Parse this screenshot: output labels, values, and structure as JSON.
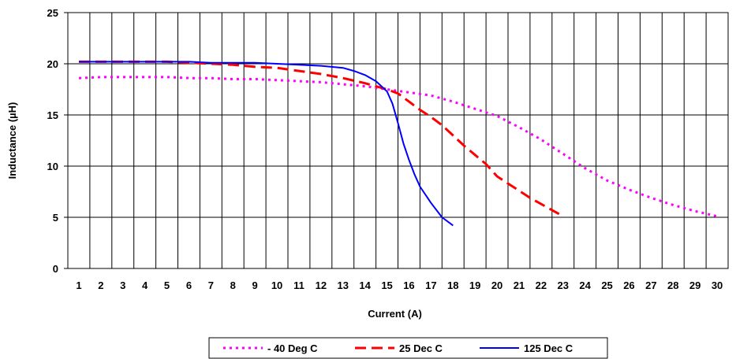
{
  "chart_data": {
    "type": "line",
    "xlabel": "Current (A)",
    "ylabel": "Inductance (µH)",
    "x_categories": [
      "1",
      "2",
      "3",
      "4",
      "5",
      "6",
      "7",
      "8",
      "9",
      "10",
      "11",
      "12",
      "13",
      "14",
      "15",
      "16",
      "17",
      "18",
      "19",
      "20",
      "21",
      "22",
      "23",
      "24",
      "25",
      "26",
      "27",
      "28",
      "29",
      "30"
    ],
    "xlim": [
      0.5,
      30.5
    ],
    "ylim": [
      0,
      25
    ],
    "yticks": [
      0,
      5,
      10,
      15,
      20,
      25
    ],
    "grid": true,
    "legend_position": "bottom",
    "series": [
      {
        "name": "- 40 Deg C",
        "color": "#ff00ff",
        "style": "dotted",
        "x": [
          1,
          2,
          3,
          4,
          5,
          6,
          7,
          8,
          9,
          10,
          11,
          12,
          13,
          14,
          15,
          16,
          17,
          18,
          19,
          20,
          21,
          22,
          23,
          24,
          25,
          26,
          27,
          28,
          29,
          30
        ],
        "y": [
          18.6,
          18.7,
          18.7,
          18.7,
          18.7,
          18.6,
          18.6,
          18.5,
          18.5,
          18.4,
          18.3,
          18.2,
          18.0,
          17.8,
          17.5,
          17.2,
          16.9,
          16.3,
          15.6,
          14.9,
          13.8,
          12.6,
          11.2,
          9.8,
          8.6,
          7.7,
          6.9,
          6.2,
          5.6,
          5.1
        ]
      },
      {
        "name": "25 Dec C",
        "color": "#ff0000",
        "style": "dashed",
        "x": [
          1,
          2,
          3,
          4,
          5,
          6,
          7,
          8,
          9,
          10,
          11,
          12,
          13,
          14,
          15,
          15.5,
          16,
          16.5,
          17,
          17.5,
          18,
          18.5,
          19,
          19.5,
          20,
          20.5,
          21,
          21.5,
          22,
          22.5,
          23
        ],
        "y": [
          20.2,
          20.2,
          20.2,
          20.2,
          20.2,
          20.1,
          20.0,
          19.9,
          19.7,
          19.6,
          19.3,
          19.0,
          18.6,
          18.1,
          17.5,
          17.1,
          16.3,
          15.5,
          14.8,
          14.0,
          13.0,
          12.0,
          11.1,
          10.2,
          9.0,
          8.3,
          7.6,
          6.9,
          6.3,
          5.7,
          5.1
        ]
      },
      {
        "name": "125 Dec C",
        "color": "#0000ff",
        "style": "solid",
        "x": [
          1,
          2,
          3,
          4,
          5,
          6,
          7,
          8,
          9,
          10,
          11,
          12,
          13,
          13.5,
          14,
          14.5,
          15,
          15.25,
          15.5,
          15.75,
          16,
          16.25,
          16.5,
          17,
          17.5,
          18
        ],
        "y": [
          20.2,
          20.2,
          20.2,
          20.2,
          20.2,
          20.2,
          20.1,
          20.1,
          20.1,
          20.0,
          19.9,
          19.8,
          19.6,
          19.3,
          18.9,
          18.3,
          17.3,
          16.1,
          14.2,
          12.2,
          10.6,
          9.2,
          8.0,
          6.4,
          5.0,
          4.2
        ]
      }
    ]
  }
}
